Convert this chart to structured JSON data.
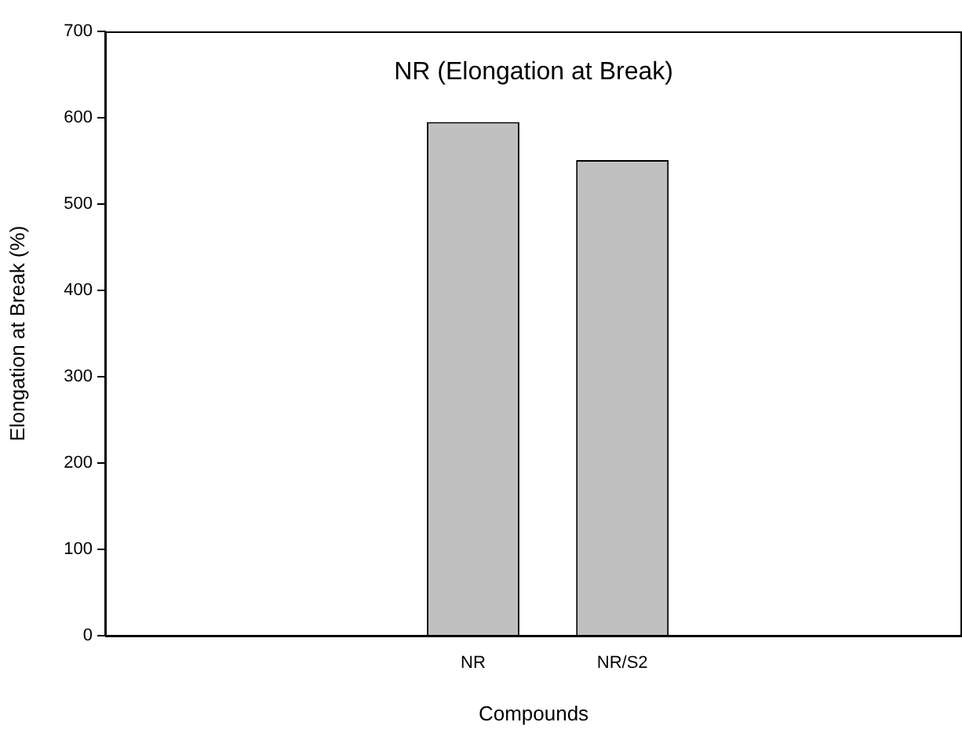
{
  "chart_data": {
    "type": "bar",
    "title": "NR (Elongation at Break)",
    "xlabel": "Compounds",
    "ylabel": "Elongation at Break (%)",
    "categories": [
      "NR",
      "NR/S2"
    ],
    "values": [
      595,
      551
    ],
    "color": "#c0c0c0",
    "ylim": [
      0,
      700
    ],
    "yticks": [
      0,
      100,
      200,
      300,
      400,
      500,
      600,
      700
    ],
    "grid": false,
    "legend": false
  }
}
